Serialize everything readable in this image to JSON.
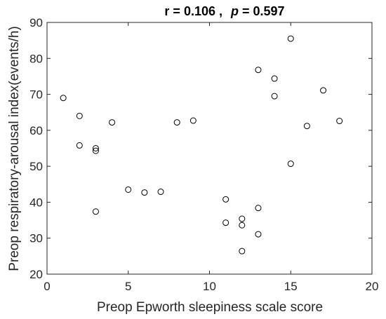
{
  "chart_data": {
    "type": "scatter",
    "title": {
      "r_label": "r = 0.106 ,",
      "p_symbol": "p",
      "p_value": " = 0.597"
    },
    "xlabel": "Preop Epworth sleepiness scale score",
    "ylabel": "Preop respiratory-arousal index(events/h)",
    "xlim": [
      0,
      20
    ],
    "ylim": [
      20,
      90
    ],
    "xticks": [
      0,
      5,
      10,
      15,
      20
    ],
    "yticks": [
      20,
      30,
      40,
      50,
      60,
      70,
      80,
      90
    ],
    "grid": false,
    "marker": "open-circle",
    "marker_color": "#000000",
    "series": [
      {
        "points": [
          {
            "x": 1,
            "y": 69
          },
          {
            "x": 2,
            "y": 64
          },
          {
            "x": 2,
            "y": 55.8
          },
          {
            "x": 3,
            "y": 55
          },
          {
            "x": 3,
            "y": 54.3
          },
          {
            "x": 3,
            "y": 37.4
          },
          {
            "x": 4,
            "y": 62.2
          },
          {
            "x": 5,
            "y": 43.5
          },
          {
            "x": 6,
            "y": 42.7
          },
          {
            "x": 7,
            "y": 42.9
          },
          {
            "x": 8,
            "y": 62.2
          },
          {
            "x": 9,
            "y": 62.7
          },
          {
            "x": 11,
            "y": 40.8
          },
          {
            "x": 11,
            "y": 34.3
          },
          {
            "x": 12,
            "y": 35.4
          },
          {
            "x": 12,
            "y": 33.6
          },
          {
            "x": 12,
            "y": 26.4
          },
          {
            "x": 13,
            "y": 76.8
          },
          {
            "x": 13,
            "y": 38.4
          },
          {
            "x": 13,
            "y": 31.1
          },
          {
            "x": 14,
            "y": 74.4
          },
          {
            "x": 14,
            "y": 69.5
          },
          {
            "x": 15,
            "y": 85.5
          },
          {
            "x": 15,
            "y": 50.7
          },
          {
            "x": 16,
            "y": 61.2
          },
          {
            "x": 17,
            "y": 71.1
          },
          {
            "x": 18,
            "y": 62.6
          }
        ]
      }
    ]
  }
}
